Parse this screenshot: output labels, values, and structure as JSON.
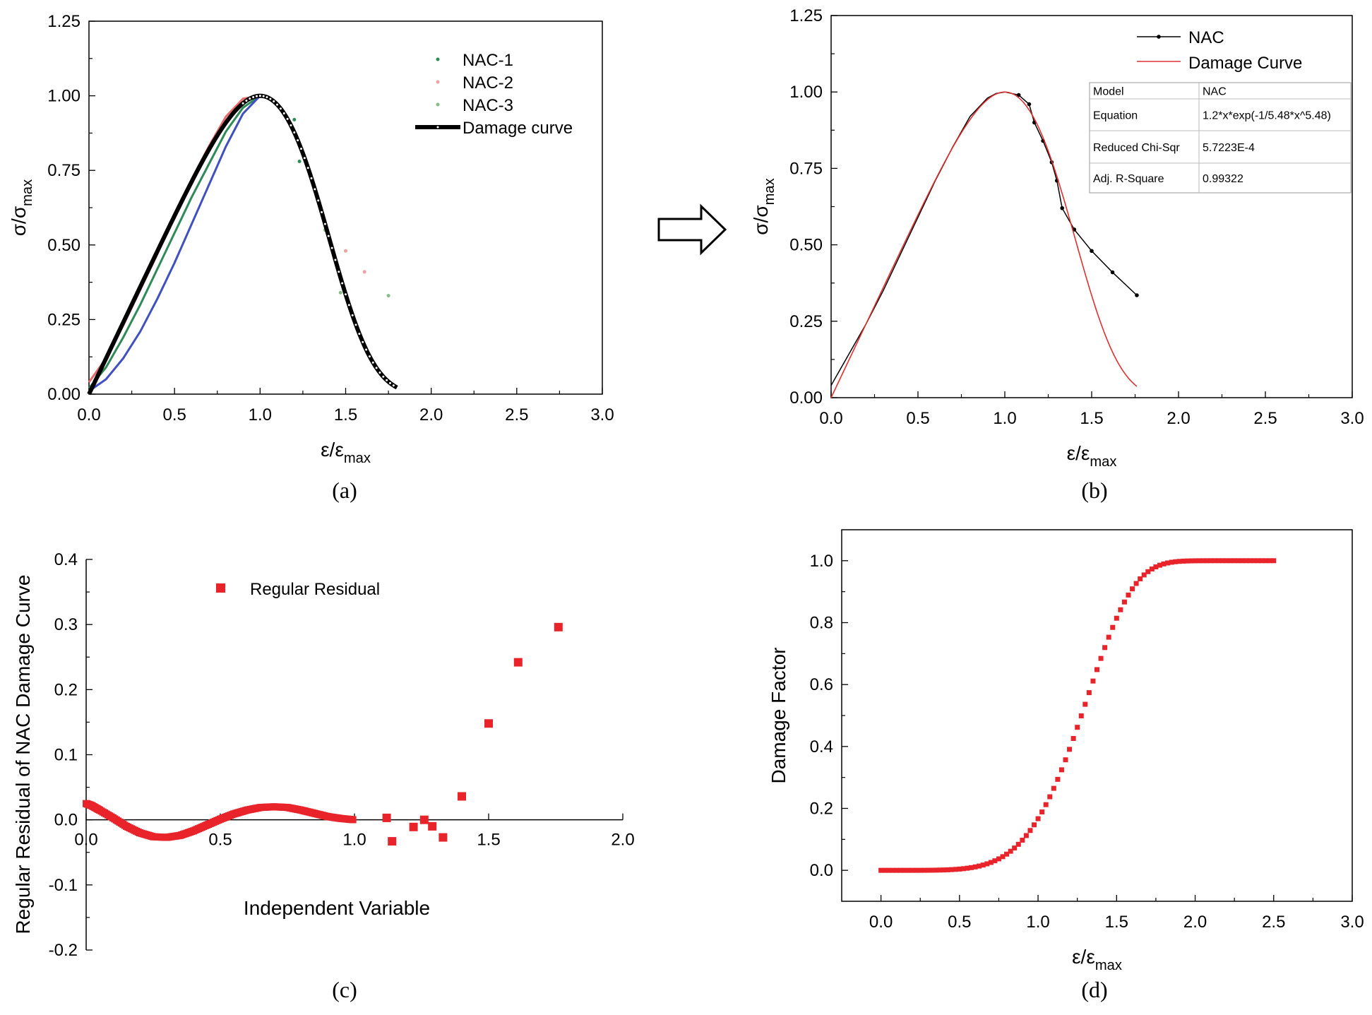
{
  "chart_data": [
    {
      "id": "a",
      "type": "line",
      "panel_label": "(a)",
      "xlabel": "ε/ε",
      "xlabel_sub": "max",
      "ylabel": "σ/σ",
      "ylabel_sub": "max",
      "xlim": [
        0,
        3
      ],
      "ylim": [
        0,
        1.25
      ],
      "xticks": [
        "0.0",
        "0.5",
        "1.0",
        "1.5",
        "2.0",
        "2.5",
        "3.0"
      ],
      "yticks": [
        "0.00",
        "0.25",
        "0.50",
        "0.75",
        "1.00",
        "1.25"
      ],
      "legend": [
        "NAC-1",
        "NAC-2",
        "NAC-3",
        "Damage curve"
      ],
      "legend_position": "top-right",
      "series": [
        {
          "name": "NAC-1",
          "color": "#2e8b57",
          "style": "line",
          "x": [
            0.0,
            0.1,
            0.2,
            0.3,
            0.4,
            0.5,
            0.6,
            0.7,
            0.8,
            0.9,
            1.0
          ],
          "y": [
            0.02,
            0.09,
            0.19,
            0.3,
            0.42,
            0.54,
            0.66,
            0.77,
            0.88,
            0.96,
            1.0
          ]
        },
        {
          "name": "NAC-2",
          "color": "#e86a6a",
          "style": "line",
          "x": [
            0.0,
            0.1,
            0.2,
            0.3,
            0.4,
            0.5,
            0.6,
            0.7,
            0.8,
            0.9,
            1.0
          ],
          "y": [
            0.04,
            0.12,
            0.23,
            0.35,
            0.47,
            0.6,
            0.72,
            0.83,
            0.93,
            0.99,
            1.0
          ]
        },
        {
          "name": "NAC-3",
          "color": "#4050c0",
          "style": "line",
          "x": [
            0.0,
            0.1,
            0.2,
            0.3,
            0.4,
            0.5,
            0.6,
            0.7,
            0.8,
            0.9,
            1.0
          ],
          "y": [
            0.01,
            0.05,
            0.12,
            0.21,
            0.32,
            0.44,
            0.57,
            0.7,
            0.83,
            0.94,
            1.0
          ]
        },
        {
          "name": "NAC-1 pts",
          "color": "#2e8b57",
          "style": "points",
          "x": [
            1.2,
            1.23
          ],
          "y": [
            0.92,
            0.78
          ]
        },
        {
          "name": "NAC-2 pts",
          "color": "#f0a0a0",
          "style": "points",
          "x": [
            1.5,
            1.61
          ],
          "y": [
            0.48,
            0.41
          ]
        },
        {
          "name": "NAC-3 pts",
          "color": "#88bb88",
          "style": "points",
          "x": [
            1.38,
            1.47,
            1.75
          ],
          "y": [
            0.55,
            0.34,
            0.33
          ]
        },
        {
          "name": "Damage curve",
          "color": "#000000",
          "style": "damage",
          "width": 6,
          "x_range": [
            0.0,
            1.8
          ]
        }
      ]
    },
    {
      "id": "b",
      "type": "line",
      "panel_label": "(b)",
      "xlabel": "ε/ε",
      "xlabel_sub": "max",
      "ylabel": "σ/σ",
      "ylabel_sub": "max",
      "xlim": [
        0,
        3
      ],
      "ylim": [
        0,
        1.25
      ],
      "xticks": [
        "0.0",
        "0.5",
        "1.0",
        "1.5",
        "2.0",
        "2.5",
        "3.0"
      ],
      "yticks": [
        "0.00",
        "0.25",
        "0.50",
        "0.75",
        "1.00",
        "1.25"
      ],
      "legend": [
        "NAC",
        "Damage Curve"
      ],
      "legend_position": "top-right",
      "fit_table": [
        [
          "Model",
          "NAC"
        ],
        [
          "Equation",
          "1.2*x*exp(-1/5.48*x^5.48)"
        ],
        [
          "Reduced Chi-Sqr",
          "5.7223E-4"
        ],
        [
          "Adj. R-Square",
          "0.99322"
        ]
      ],
      "series": [
        {
          "name": "NAC",
          "color": "#000000",
          "style": "line-markers",
          "x": [
            0.0,
            0.05,
            0.1,
            0.15,
            0.2,
            0.3,
            0.4,
            0.5,
            0.6,
            0.7,
            0.8,
            0.9,
            0.95,
            1.0,
            1.08,
            1.14,
            1.17,
            1.22,
            1.27,
            1.3,
            1.33,
            1.4,
            1.5,
            1.62,
            1.76
          ],
          "y": [
            0.04,
            0.09,
            0.14,
            0.19,
            0.24,
            0.35,
            0.47,
            0.59,
            0.71,
            0.82,
            0.92,
            0.98,
            0.995,
            1.0,
            0.99,
            0.96,
            0.9,
            0.84,
            0.77,
            0.71,
            0.62,
            0.55,
            0.48,
            0.41,
            0.335
          ]
        },
        {
          "name": "Damage Curve",
          "color": "#e03030",
          "style": "damage",
          "width": 1.6,
          "x_range": [
            0.0,
            1.76
          ]
        }
      ]
    },
    {
      "id": "c",
      "type": "scatter",
      "panel_label": "(c)",
      "xlabel": "Independent Variable",
      "ylabel": "Regular Residual of NAC Damage Curve",
      "xlim": [
        0,
        2.0
      ],
      "ylim": [
        -0.2,
        0.4
      ],
      "xticks": [
        "0.0",
        "0.5",
        "1.0",
        "1.5",
        "2.0"
      ],
      "yticks": [
        "-0.2",
        "-0.1",
        "0.0",
        "0.1",
        "0.2",
        "0.3",
        "0.4"
      ],
      "legend": [
        "Regular Residual"
      ],
      "legend_position": "top-left",
      "series": [
        {
          "name": "Regular Residual",
          "color": "#e8242a",
          "dense_band": {
            "x": [
              0.0,
              0.02,
              0.05,
              0.1,
              0.15,
              0.2,
              0.25,
              0.3,
              0.35,
              0.4,
              0.45,
              0.5,
              0.55,
              0.6,
              0.65,
              0.7,
              0.75,
              0.8,
              0.85,
              0.9,
              0.95,
              1.0
            ],
            "y": [
              0.025,
              0.022,
              0.015,
              0.003,
              -0.01,
              -0.02,
              -0.026,
              -0.027,
              -0.024,
              -0.017,
              -0.008,
              0.001,
              0.009,
              0.015,
              0.019,
              0.02,
              0.019,
              0.015,
              0.01,
              0.005,
              0.002,
              0.0
            ]
          },
          "x": [
            1.12,
            1.14,
            1.22,
            1.26,
            1.29,
            1.33,
            1.4,
            1.5,
            1.61,
            1.76
          ],
          "y": [
            0.003,
            -0.033,
            -0.011,
            0.0,
            -0.01,
            -0.027,
            0.036,
            0.148,
            0.242,
            0.296
          ]
        }
      ]
    },
    {
      "id": "d",
      "type": "line",
      "panel_label": "(d)",
      "xlabel": "ε/ε",
      "xlabel_sub": "max",
      "ylabel": "Damage Factor",
      "xlim": [
        -0.25,
        3.0
      ],
      "ylim": [
        -0.1,
        1.1
      ],
      "xticks": [
        "0.0",
        "0.5",
        "1.0",
        "1.5",
        "2.0",
        "2.5",
        "3.0"
      ],
      "yticks": [
        "0.0",
        "0.2",
        "0.4",
        "0.6",
        "0.8",
        "1.0"
      ],
      "series": [
        {
          "name": "Damage Factor",
          "color": "#e8242a",
          "style": "markers",
          "equation": "D = 1 - exp(-x^5.48 / 5.48)",
          "x_range": [
            0.0,
            2.5
          ],
          "step": 0.025
        }
      ]
    }
  ]
}
